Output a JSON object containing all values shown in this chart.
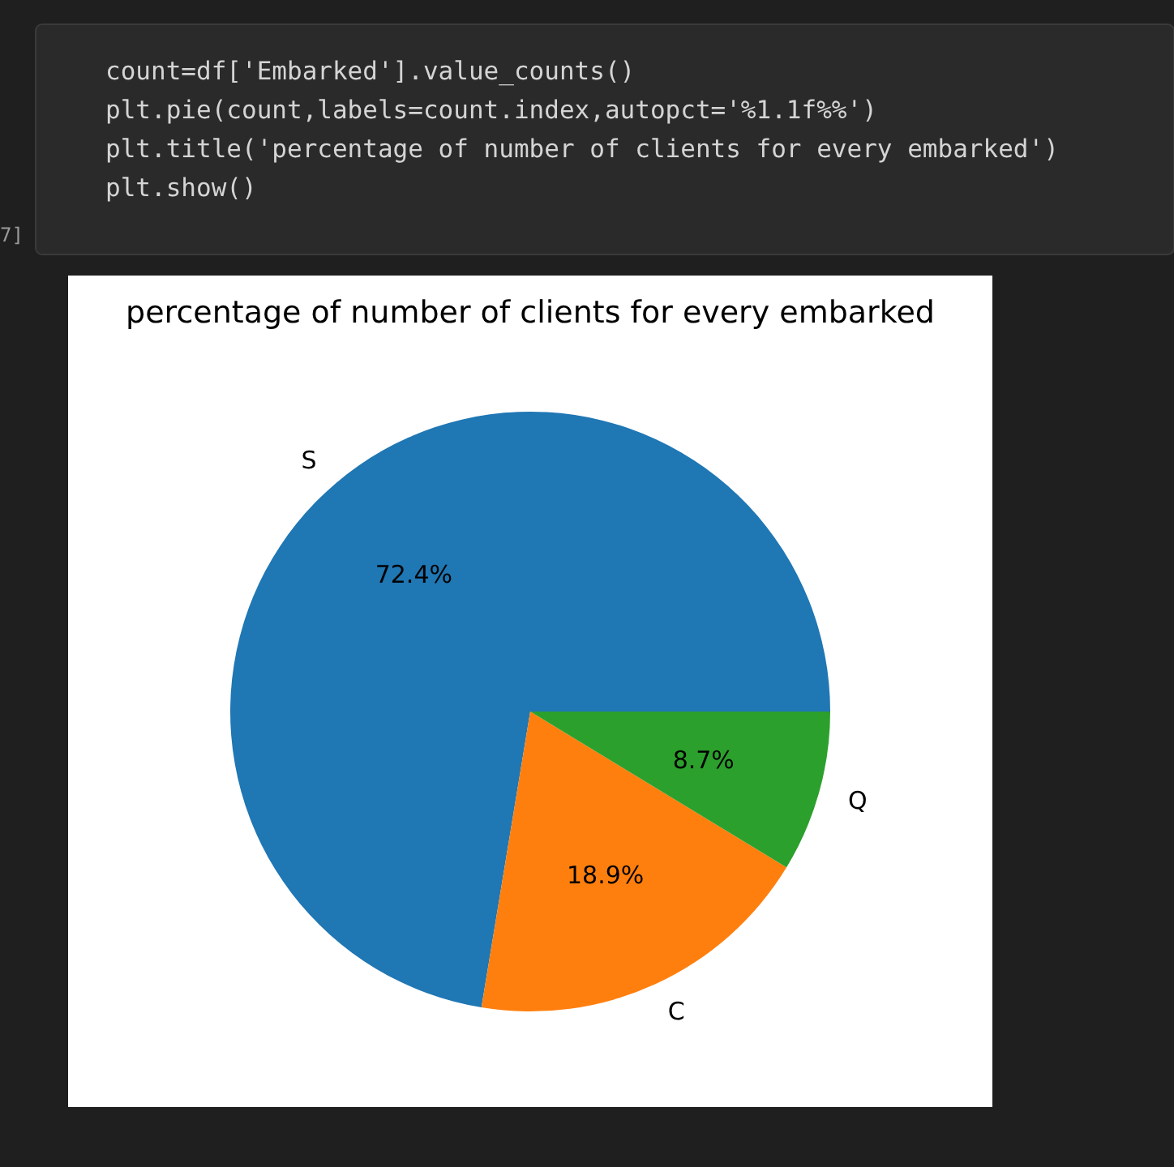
{
  "chart_data": {
    "type": "pie",
    "title": "percentage of number of clients for every embarked",
    "categories": [
      "S",
      "C",
      "Q"
    ],
    "values": [
      72.4,
      18.9,
      8.7
    ],
    "colors": [
      "#1f77b4",
      "#ff7f0e",
      "#2ca02c"
    ],
    "value_labels": [
      "72.4%",
      "18.9%",
      "8.7%"
    ],
    "annotations": [
      "count=df['Embarked'].value_counts()",
      "plt.pie(count,labels=count.index,autopct='%1.1f%%')",
      "plt.title('percentage of number of clients for every embarked')",
      "plt.show()",
      "7]"
    ]
  }
}
